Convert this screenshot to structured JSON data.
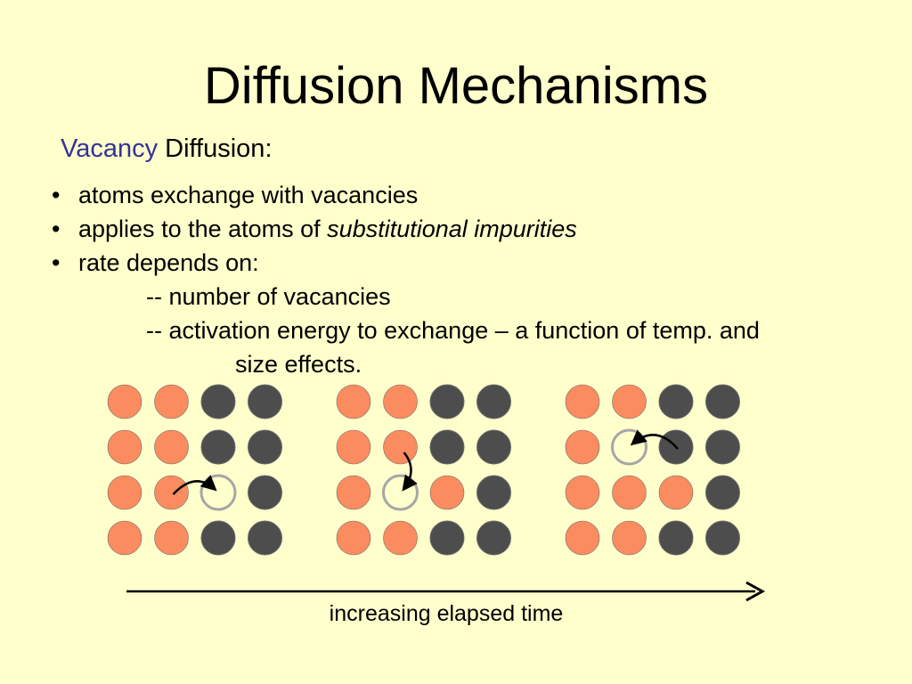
{
  "slide": {
    "title": "Diffusion Mechanisms",
    "subtitle_accent": "Vacancy",
    "subtitle_rest": " Diffusion:",
    "bullet_marker": "•",
    "bullets": {
      "b1": "atoms exchange with vacancies",
      "b2_text": "applies to the atoms of ",
      "b2_italic": "substitutional impurities",
      "b3": "rate depends on:",
      "sub1": "-- number of vacancies",
      "sub2": "-- activation energy to exchange – a function of temp. and",
      "sub2_cont": "size effects."
    },
    "caption": "increasing elapsed time"
  },
  "colors": {
    "background": "#ffffcc",
    "accent_text": "#333399",
    "impurity_atom": "#fa8c5f",
    "host_atom": "#4d4d4d",
    "vacancy_outline": "#a6a6a6"
  },
  "lattices": [
    {
      "stage": 1,
      "grid": [
        [
          "impurity",
          "impurity",
          "host",
          "host"
        ],
        [
          "impurity",
          "impurity",
          "host",
          "host"
        ],
        [
          "impurity",
          "impurity",
          "vacancy",
          "host"
        ],
        [
          "impurity",
          "impurity",
          "host",
          "host"
        ]
      ],
      "jump": {
        "from": [
          2,
          1
        ],
        "to": [
          2,
          2
        ]
      }
    },
    {
      "stage": 2,
      "grid": [
        [
          "impurity",
          "impurity",
          "host",
          "host"
        ],
        [
          "impurity",
          "impurity",
          "host",
          "host"
        ],
        [
          "impurity",
          "vacancy",
          "impurity",
          "host"
        ],
        [
          "impurity",
          "impurity",
          "host",
          "host"
        ]
      ],
      "jump": {
        "from": [
          1,
          1
        ],
        "to": [
          2,
          1
        ]
      }
    },
    {
      "stage": 3,
      "grid": [
        [
          "impurity",
          "impurity",
          "host",
          "host"
        ],
        [
          "impurity",
          "vacancy",
          "host",
          "host"
        ],
        [
          "impurity",
          "impurity",
          "impurity",
          "host"
        ],
        [
          "impurity",
          "impurity",
          "host",
          "host"
        ]
      ],
      "jump": {
        "from": [
          1,
          2
        ],
        "to": [
          1,
          1
        ]
      }
    }
  ]
}
